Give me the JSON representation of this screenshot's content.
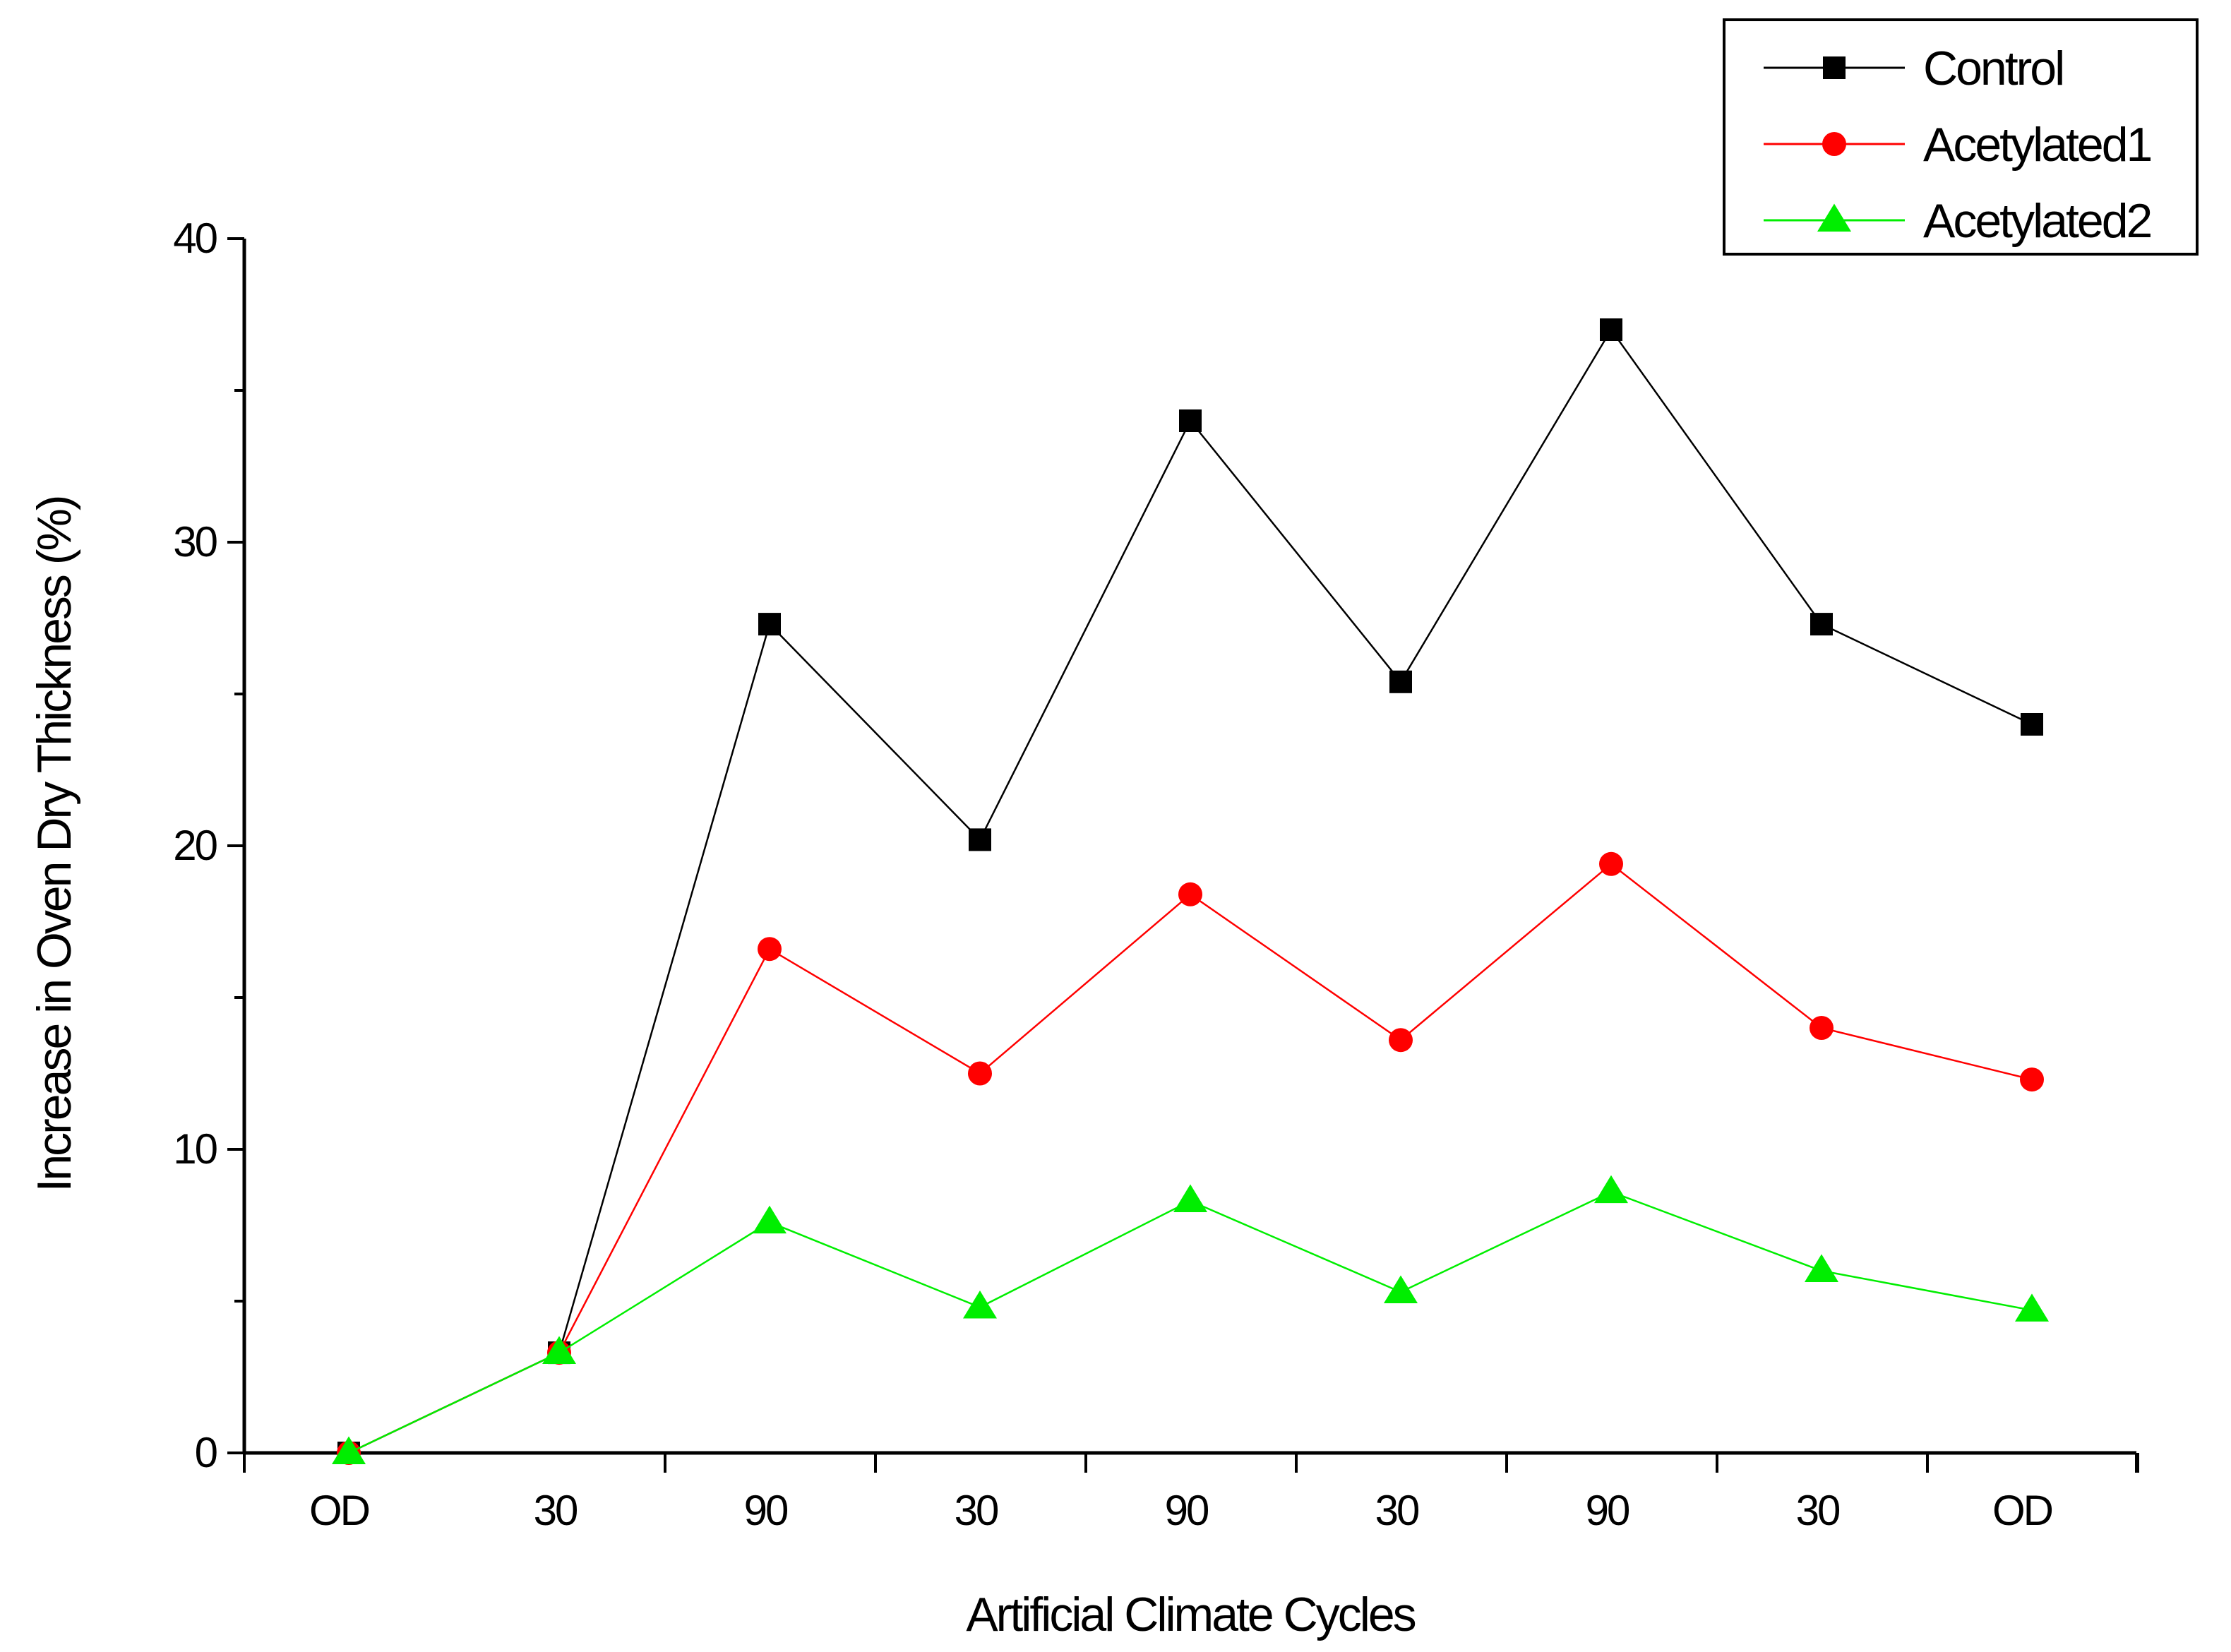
{
  "chart_data": {
    "type": "line",
    "title": "",
    "xlabel": "Artificial Climate Cycles",
    "ylabel": "Increase in Oven Dry Thickness (%)",
    "categories": [
      "OD",
      "30",
      "90",
      "30",
      "90",
      "30",
      "90",
      "30",
      "OD"
    ],
    "ylim": [
      0,
      40
    ],
    "yticks": [
      "0",
      "10",
      "20",
      "30",
      "40"
    ],
    "grid": false,
    "legend_position": "top-right",
    "series": [
      {
        "name": "Control",
        "color": "#000000",
        "marker": "square",
        "values": [
          0,
          3.3,
          27.3,
          20.2,
          34.0,
          25.4,
          37.0,
          27.3,
          24.0
        ]
      },
      {
        "name": "Acetylated1",
        "color": "#ff0000",
        "marker": "circle",
        "values": [
          0,
          3.3,
          16.6,
          12.5,
          18.4,
          13.6,
          19.4,
          14.0,
          12.3
        ]
      },
      {
        "name": "Acetylated2",
        "color": "#00ee00",
        "marker": "triangle",
        "values": [
          0,
          3.3,
          7.6,
          4.8,
          8.3,
          5.3,
          8.6,
          6.0,
          4.7
        ]
      }
    ]
  }
}
